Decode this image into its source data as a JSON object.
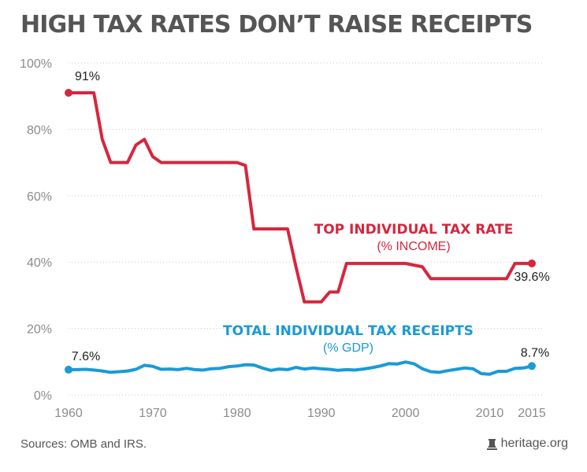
{
  "title": "HIGH TAX RATES DON’T RAISE RECEIPTS",
  "footer": {
    "sources": "Sources: OMB and IRS.",
    "brand": "heritage.org",
    "brand_icon": "bell-icon"
  },
  "chart_data": {
    "type": "line",
    "title": "HIGH TAX RATES DON’T RAISE RECEIPTS",
    "xlabel": "",
    "ylabel": "",
    "xlim": [
      1960,
      2015
    ],
    "ylim": [
      0,
      100
    ],
    "x_ticks": [
      {
        "value": 1960,
        "label": "1960"
      },
      {
        "value": 1970,
        "label": "1970"
      },
      {
        "value": 1980,
        "label": "1980"
      },
      {
        "value": 1990,
        "label": "1990"
      },
      {
        "value": 2000,
        "label": "2000"
      },
      {
        "value": 2010,
        "label": "2010"
      },
      {
        "value": 2015,
        "label": "2015"
      }
    ],
    "y_ticks": [
      {
        "value": 0,
        "label": "0%"
      },
      {
        "value": 20,
        "label": "20%"
      },
      {
        "value": 40,
        "label": "40%"
      },
      {
        "value": 60,
        "label": "60%"
      },
      {
        "value": 80,
        "label": "80%"
      },
      {
        "value": 100,
        "label": "100%"
      }
    ],
    "grid": true,
    "legend": "none",
    "series": [
      {
        "name": "TOP INDIVIDUAL TAX RATE",
        "unit": "(% INCOME)",
        "color": "#d7263d",
        "start_label": "91%",
        "end_label": "39.6%",
        "x": [
          1960,
          1961,
          1962,
          1963,
          1964,
          1965,
          1966,
          1967,
          1968,
          1969,
          1970,
          1971,
          1972,
          1973,
          1974,
          1975,
          1976,
          1977,
          1978,
          1979,
          1980,
          1981,
          1982,
          1983,
          1984,
          1985,
          1986,
          1987,
          1988,
          1989,
          1990,
          1991,
          1992,
          1993,
          1994,
          1995,
          1996,
          1997,
          1998,
          1999,
          2000,
          2001,
          2002,
          2003,
          2004,
          2005,
          2006,
          2007,
          2008,
          2009,
          2010,
          2011,
          2012,
          2013,
          2014,
          2015
        ],
        "y": [
          91,
          91,
          91,
          91,
          77,
          70,
          70,
          70,
          75.25,
          77,
          71.75,
          70,
          70,
          70,
          70,
          70,
          70,
          70,
          70,
          70,
          70,
          69.13,
          50,
          50,
          50,
          50,
          50,
          38.5,
          28,
          28,
          28,
          31,
          31,
          39.6,
          39.6,
          39.6,
          39.6,
          39.6,
          39.6,
          39.6,
          39.6,
          39.1,
          38.6,
          35,
          35,
          35,
          35,
          35,
          35,
          35,
          35,
          35,
          35,
          39.6,
          39.6,
          39.6
        ]
      },
      {
        "name": "TOTAL INDIVIDUAL TAX RECEIPTS",
        "unit": "(% GDP)",
        "color": "#1a9ad6",
        "start_label": "7.6%",
        "end_label": "8.7%",
        "x": [
          1960,
          1961,
          1962,
          1963,
          1964,
          1965,
          1966,
          1967,
          1968,
          1969,
          1970,
          1971,
          1972,
          1973,
          1974,
          1975,
          1976,
          1977,
          1978,
          1979,
          1980,
          1981,
          1982,
          1983,
          1984,
          1985,
          1986,
          1987,
          1988,
          1989,
          1990,
          1991,
          1992,
          1993,
          1994,
          1995,
          1996,
          1997,
          1998,
          1999,
          2000,
          2001,
          2002,
          2003,
          2004,
          2005,
          2006,
          2007,
          2008,
          2009,
          2010,
          2011,
          2012,
          2013,
          2014,
          2015
        ],
        "y": [
          7.6,
          7.6,
          7.7,
          7.5,
          7.2,
          6.8,
          7.0,
          7.2,
          7.7,
          8.9,
          8.6,
          7.7,
          7.8,
          7.6,
          8.0,
          7.6,
          7.5,
          7.9,
          8.0,
          8.5,
          8.7,
          9.1,
          9.0,
          8.1,
          7.4,
          7.8,
          7.6,
          8.3,
          7.8,
          8.1,
          7.9,
          7.7,
          7.4,
          7.6,
          7.5,
          7.8,
          8.2,
          8.7,
          9.4,
          9.3,
          9.9,
          9.4,
          7.9,
          7.0,
          6.8,
          7.3,
          7.7,
          8.1,
          7.9,
          6.4,
          6.2,
          7.1,
          7.1,
          8.0,
          8.1,
          8.7
        ]
      }
    ]
  }
}
